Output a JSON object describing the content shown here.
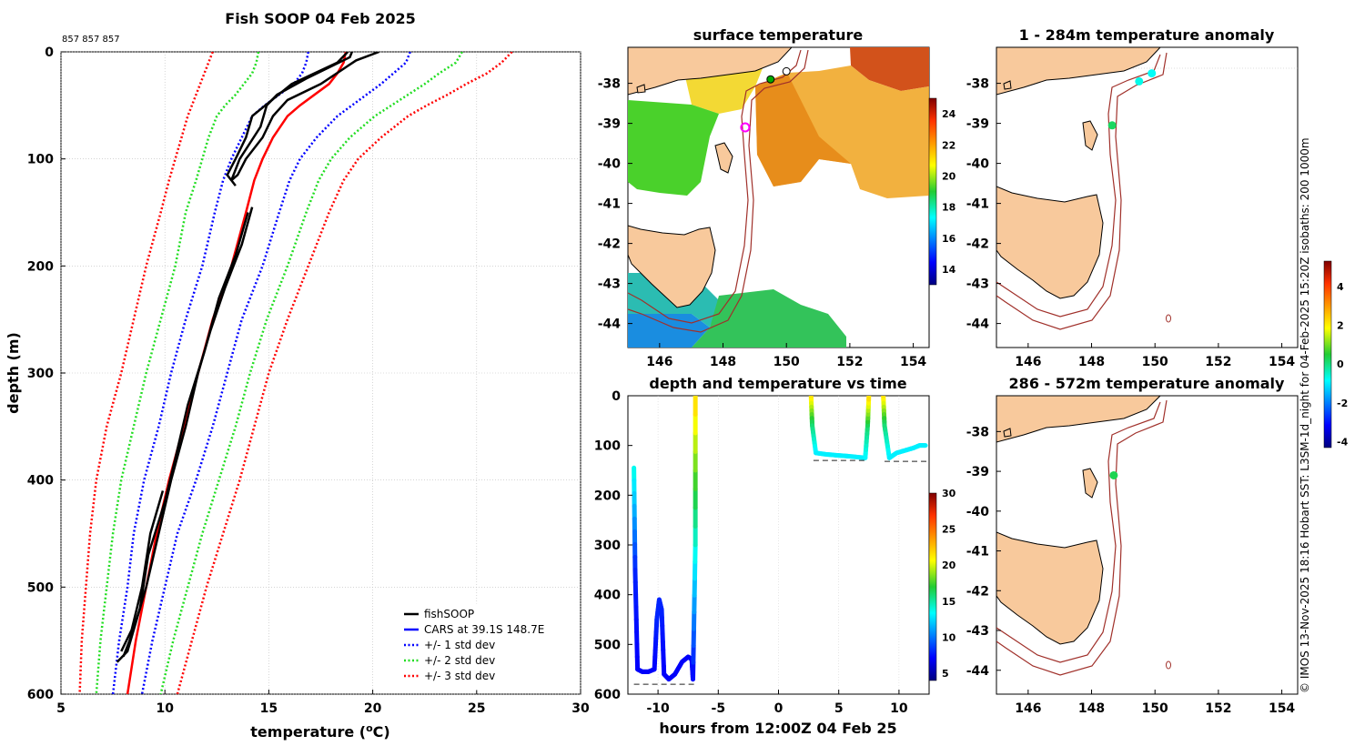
{
  "colors": {
    "fish": "#000000",
    "cars": "#0000ff",
    "std1": "#0000ff",
    "std2": "#22dd22",
    "std3": "#ff0000",
    "land": "#f8c99c",
    "isobath": "#a0302a"
  },
  "chart_data": [
    {
      "id": "profile",
      "type": "line",
      "title": "Fish SOOP 04 Feb 2025",
      "ids_label": "857 857 857",
      "xlabel_main": "temperature (",
      "xlabel_sup": "o",
      "xlabel_tail": "C)",
      "ylabel": "depth (m)",
      "xlim": [
        5,
        30
      ],
      "ylim": [
        600,
        0
      ],
      "xticks": [
        "5",
        "10",
        "15",
        "20",
        "25",
        "30"
      ],
      "yticks": [
        "0",
        "100",
        "200",
        "300",
        "400",
        "500",
        "600"
      ],
      "legend": [
        "fishSOOP",
        "CARS at 39.1S 148.7E",
        "+/- 1 std dev",
        "+/- 2 std dev",
        "+/- 3 std dev"
      ],
      "depth": [
        0,
        10,
        20,
        30,
        40,
        50,
        60,
        80,
        100,
        120,
        150,
        200,
        250,
        300,
        350,
        400,
        450,
        500,
        550,
        600
      ],
      "series": [
        {
          "name": "CARS at 39.1S 148.7E",
          "style": "solid",
          "values": [
            18.7,
            18.6,
            18.3,
            17.9,
            17.2,
            16.5,
            15.9,
            15.2,
            14.7,
            14.3,
            13.9,
            13.2,
            12.3,
            11.6,
            10.9,
            10.2,
            9.6,
            9.1,
            8.6,
            8.2
          ]
        },
        {
          "name": "+1 std dev",
          "style": "dot",
          "values": [
            16.9,
            16.8,
            16.6,
            16.2,
            15.5,
            14.8,
            14.2,
            13.7,
            13.2,
            12.8,
            12.4,
            11.8,
            11.0,
            10.3,
            9.7,
            9.0,
            8.5,
            8.2,
            7.8,
            7.5
          ]
        },
        {
          "name": "-1 std dev",
          "style": "dot",
          "values": [
            21.8,
            21.6,
            21.0,
            20.4,
            19.7,
            19.0,
            18.3,
            17.3,
            16.5,
            16.0,
            15.5,
            14.7,
            13.7,
            13.0,
            12.3,
            11.5,
            10.6,
            10.0,
            9.4,
            8.9
          ]
        },
        {
          "name": "+2 std dev",
          "style": "dot",
          "values": [
            14.5,
            14.4,
            14.2,
            13.8,
            13.4,
            12.9,
            12.5,
            12.1,
            11.8,
            11.5,
            11.0,
            10.5,
            9.8,
            9.1,
            8.5,
            7.9,
            7.5,
            7.2,
            6.9,
            6.7
          ]
        },
        {
          "name": "-2 std dev",
          "style": "dot",
          "values": [
            24.3,
            24.0,
            23.2,
            22.5,
            21.7,
            20.9,
            20.1,
            18.9,
            18.0,
            17.4,
            16.8,
            15.9,
            14.9,
            14.1,
            13.4,
            12.6,
            11.8,
            11.1,
            10.4,
            9.8
          ]
        },
        {
          "name": "+3 std dev",
          "style": "dot",
          "values": [
            12.3,
            12.1,
            11.9,
            11.7,
            11.5,
            11.3,
            11.1,
            10.8,
            10.5,
            10.2,
            9.8,
            9.1,
            8.5,
            7.9,
            7.2,
            6.7,
            6.4,
            6.2,
            6.0,
            5.9
          ]
        },
        {
          "name": "-3 std dev",
          "style": "dot",
          "values": [
            26.7,
            26.2,
            25.5,
            24.5,
            23.6,
            22.6,
            21.7,
            20.4,
            19.3,
            18.6,
            17.9,
            16.9,
            15.9,
            15.0,
            14.3,
            13.6,
            12.8,
            12.0,
            11.3,
            10.6
          ]
        }
      ],
      "fish_profiles": [
        {
          "depth": [
            0,
            5,
            25,
            40,
            50,
            70,
            100,
            120,
            125
          ],
          "values": [
            19.0,
            18.9,
            16.8,
            15.4,
            14.9,
            14.6,
            13.6,
            13.2,
            13.4
          ]
        },
        {
          "depth": [
            0,
            8,
            30,
            45,
            60,
            80,
            100,
            115,
            120
          ],
          "values": [
            20.3,
            19.2,
            17.5,
            15.9,
            15.2,
            14.7,
            13.9,
            13.5,
            13.2
          ]
        },
        {
          "depth": [
            0,
            10,
            30,
            60,
            80,
            100,
            115,
            120
          ],
          "values": [
            18.8,
            18.3,
            16.1,
            14.2,
            13.9,
            13.4,
            13.0,
            13.2
          ]
        },
        {
          "depth": [
            145,
            180,
            220,
            260,
            300,
            350,
            400,
            450,
            500,
            540,
            560,
            570
          ],
          "values": [
            14.2,
            13.7,
            12.9,
            12.2,
            11.6,
            11.0,
            10.3,
            9.7,
            9.1,
            8.5,
            8.2,
            7.7
          ]
        },
        {
          "depth": [
            150,
            190,
            230,
            280,
            330,
            380,
            420,
            470,
            520,
            550,
            565
          ],
          "values": [
            14.0,
            13.4,
            12.6,
            11.9,
            11.1,
            10.5,
            10.0,
            9.2,
            8.8,
            8.3,
            8.0
          ]
        },
        {
          "depth": [
            410,
            450,
            500,
            540,
            560
          ],
          "values": [
            9.9,
            9.3,
            8.9,
            8.4,
            7.9
          ]
        }
      ]
    },
    {
      "id": "sst_map",
      "type": "heatmap",
      "title": "surface temperature",
      "xlim": [
        145,
        154.5
      ],
      "ylim": [
        -44.6,
        -37.1
      ],
      "xticks": [
        "146",
        "148",
        "150",
        "152",
        "154"
      ],
      "yticks": [
        "-38",
        "-39",
        "-40",
        "-41",
        "-42",
        "-43",
        "-44"
      ],
      "colorbar_range": [
        13,
        25
      ],
      "colorbar_ticks": [
        "14",
        "16",
        "18",
        "20",
        "22",
        "24"
      ],
      "markers": [
        {
          "lon": 148.7,
          "lat": -39.1,
          "color": "#ff00ff"
        },
        {
          "lon": 149.5,
          "lat": -37.9,
          "color": "#00aa00"
        },
        {
          "lon": 150.0,
          "lat": -37.7,
          "color": "#ffffff"
        }
      ]
    },
    {
      "id": "depth_time",
      "type": "scatter",
      "title": "depth and temperature vs time",
      "xlabel": "hours from 12:00Z 04 Feb 25",
      "xlim": [
        -12.5,
        12.5
      ],
      "ylim": [
        600,
        0
      ],
      "xticks": [
        "-10",
        "-5",
        "0",
        "5",
        "10"
      ],
      "yticks": [
        "0",
        "100",
        "200",
        "300",
        "400",
        "500",
        "600"
      ],
      "colorbar_range": [
        4,
        30
      ],
      "colorbar_ticks": [
        "5",
        "10",
        "15",
        "20",
        "25",
        "30"
      ],
      "tracks": [
        {
          "t": [
            -12.0,
            -11.9,
            -11.7,
            -11.3,
            -10.8,
            -10.3,
            -10.1,
            -9.9,
            -9.7,
            -9.5,
            -9.1,
            -8.6,
            -8.0,
            -7.5,
            -7.2,
            -7.1,
            -6.9,
            -6.9
          ],
          "d": [
            145,
            350,
            550,
            555,
            555,
            550,
            450,
            410,
            430,
            560,
            570,
            560,
            535,
            525,
            530,
            570,
            300,
            0
          ],
          "temp": [
            14,
            8,
            7,
            7,
            7,
            7,
            8,
            8,
            8,
            7,
            7,
            7,
            7,
            7,
            7,
            7,
            14,
            22
          ]
        },
        {
          "t": [
            2.7,
            2.8,
            3.1,
            4.0,
            5.0,
            6.0,
            7.2,
            7.4,
            7.5
          ],
          "d": [
            0,
            60,
            115,
            118,
            120,
            122,
            125,
            60,
            0
          ],
          "temp": [
            22,
            16,
            13,
            13,
            13,
            13,
            13,
            16,
            22
          ]
        },
        {
          "t": [
            8.7,
            8.8,
            9.2,
            9.8,
            10.5,
            11.2,
            11.7,
            12.2
          ],
          "d": [
            0,
            60,
            125,
            115,
            110,
            105,
            100,
            100
          ],
          "temp": [
            22,
            16,
            13,
            13,
            13,
            13,
            13,
            13
          ]
        }
      ],
      "bottom_lines": [
        {
          "t": [
            -12.0,
            -6.9
          ],
          "d": 580
        },
        {
          "t": [
            2.9,
            7.3
          ],
          "d": 130
        },
        {
          "t": [
            8.8,
            12.3
          ],
          "d": 132
        }
      ]
    },
    {
      "id": "anom_shallow",
      "type": "scatter",
      "title": "1 - 284m temperature anomaly",
      "xlim": [
        145,
        154.5
      ],
      "ylim": [
        -44.6,
        -37.1
      ],
      "xticks": [
        "146",
        "148",
        "150",
        "152",
        "154"
      ],
      "yticks": [
        "-38",
        "-39",
        "-40",
        "-41",
        "-42",
        "-43",
        "-44"
      ],
      "points": [
        {
          "lon": 149.9,
          "lat": -37.75,
          "anomaly": -0.8
        },
        {
          "lon": 149.5,
          "lat": -37.95,
          "anomaly": -0.7
        },
        {
          "lon": 148.65,
          "lat": -39.05,
          "anomaly": 0.2
        }
      ]
    },
    {
      "id": "anom_deep",
      "type": "scatter",
      "title": "286 - 572m temperature anomaly",
      "xlim": [
        145,
        154.5
      ],
      "ylim": [
        -44.6,
        -37.1
      ],
      "xticks": [
        "146",
        "148",
        "150",
        "152",
        "154"
      ],
      "yticks": [
        "-38",
        "-39",
        "-40",
        "-41",
        "-42",
        "-43",
        "-44"
      ],
      "points": [
        {
          "lon": 148.7,
          "lat": -39.1,
          "anomaly": 0.3
        }
      ],
      "colorbar_range": [
        -4.3,
        5.3
      ],
      "colorbar_ticks": [
        "4",
        "2",
        "0",
        "-2",
        "-4"
      ]
    }
  ],
  "credit": "© IMOS 13-Nov-2025 18:16 Hobart SST: L3SM-1d_night for 04-Feb-2025 15:20Z isobaths: 200  1000m"
}
